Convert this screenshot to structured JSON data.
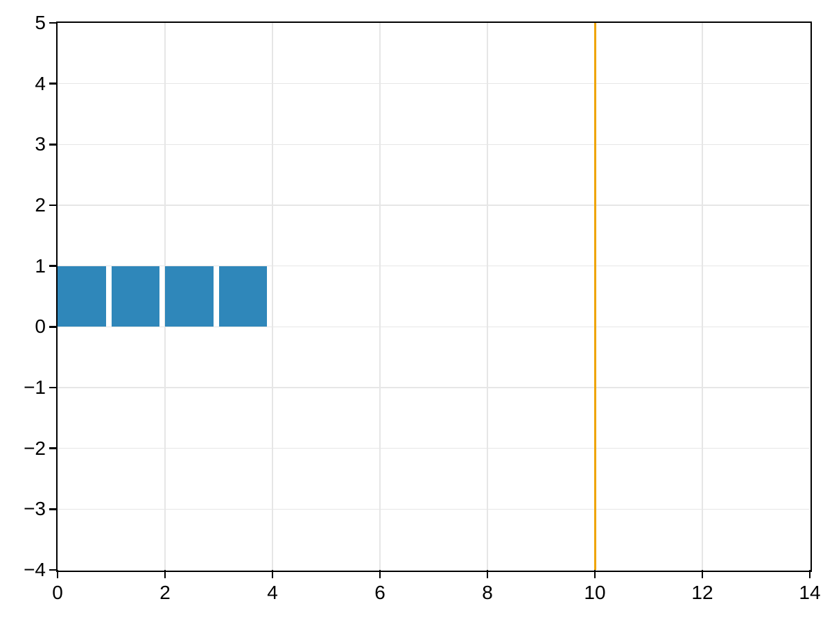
{
  "chart_data": {
    "type": "bar",
    "title": "",
    "xlabel": "",
    "ylabel": "",
    "xlim": [
      0,
      14
    ],
    "ylim": [
      -4,
      5
    ],
    "grid": true,
    "legend": null,
    "x_ticks": [
      0,
      2,
      4,
      6,
      8,
      10,
      12,
      14
    ],
    "x_tick_labels": [
      "0",
      "2",
      "4",
      "6",
      "8",
      "10",
      "12",
      "14"
    ],
    "y_ticks": [
      -4,
      -3,
      -2,
      -1,
      0,
      1,
      2,
      3,
      4,
      5
    ],
    "y_tick_labels": [
      "−4",
      "−3",
      "−2",
      "−1",
      "0",
      "1",
      "2",
      "3",
      "4",
      "5"
    ],
    "bars": {
      "x_left": [
        0,
        1,
        2,
        3
      ],
      "width": 0.9,
      "heights": [
        1,
        1,
        1,
        1
      ],
      "baseline": 0,
      "color": "#2f87ba"
    },
    "vline": {
      "x": 10,
      "color": "#efa400"
    },
    "colors": {
      "grid": "#e6e6e6",
      "spine": "#000000",
      "tick": "#000000",
      "text": "#000000",
      "background": "#ffffff"
    }
  }
}
